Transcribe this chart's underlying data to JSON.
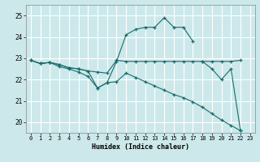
{
  "background_color": "#cce8ea",
  "grid_color": "#ffffff",
  "line_color": "#1a6b6b",
  "x_min": -0.5,
  "x_max": 23.5,
  "y_min": 19.5,
  "y_max": 25.5,
  "yticks": [
    20,
    21,
    22,
    23,
    24,
    25
  ],
  "xticks": [
    0,
    1,
    2,
    3,
    4,
    5,
    6,
    7,
    8,
    9,
    10,
    11,
    12,
    13,
    14,
    15,
    16,
    17,
    18,
    19,
    20,
    21,
    22,
    23
  ],
  "xlabel": "Humidex (Indice chaleur)",
  "series": [
    {
      "x": [
        0,
        1,
        2,
        3,
        4,
        5,
        6,
        7,
        8,
        9,
        10,
        11,
        12,
        13,
        14,
        15,
        16,
        17,
        18,
        19,
        20,
        21,
        22
      ],
      "y": [
        22.9,
        22.75,
        22.8,
        22.7,
        22.55,
        22.5,
        22.4,
        22.35,
        22.3,
        22.9,
        22.85,
        22.85,
        22.85,
        22.85,
        22.85,
        22.85,
        22.85,
        22.85,
        22.85,
        22.85,
        22.85,
        22.85,
        22.9
      ]
    },
    {
      "x": [
        0,
        1,
        2,
        3,
        4,
        5,
        6,
        7,
        8,
        9,
        10,
        11,
        12,
        13,
        14,
        15,
        16,
        17
      ],
      "y": [
        22.9,
        22.75,
        22.8,
        22.7,
        22.55,
        22.5,
        22.4,
        21.6,
        21.85,
        22.85,
        24.1,
        24.35,
        24.45,
        24.45,
        24.9,
        24.45,
        24.45,
        23.8
      ]
    },
    {
      "x": [
        0,
        1,
        2,
        3,
        4,
        5,
        6,
        7,
        8,
        9,
        10,
        11,
        12,
        13,
        14,
        15,
        16,
        17,
        18,
        19,
        20,
        21,
        22
      ],
      "y": [
        22.9,
        22.75,
        22.8,
        22.6,
        22.5,
        22.35,
        22.15,
        21.6,
        21.85,
        21.9,
        22.3,
        22.1,
        21.9,
        21.7,
        21.5,
        21.3,
        21.15,
        20.95,
        20.7,
        20.4,
        20.1,
        19.85,
        19.6
      ]
    },
    {
      "x": [
        18,
        19,
        20,
        21,
        22
      ],
      "y": [
        22.85,
        22.5,
        22.0,
        22.5,
        19.6
      ]
    }
  ]
}
